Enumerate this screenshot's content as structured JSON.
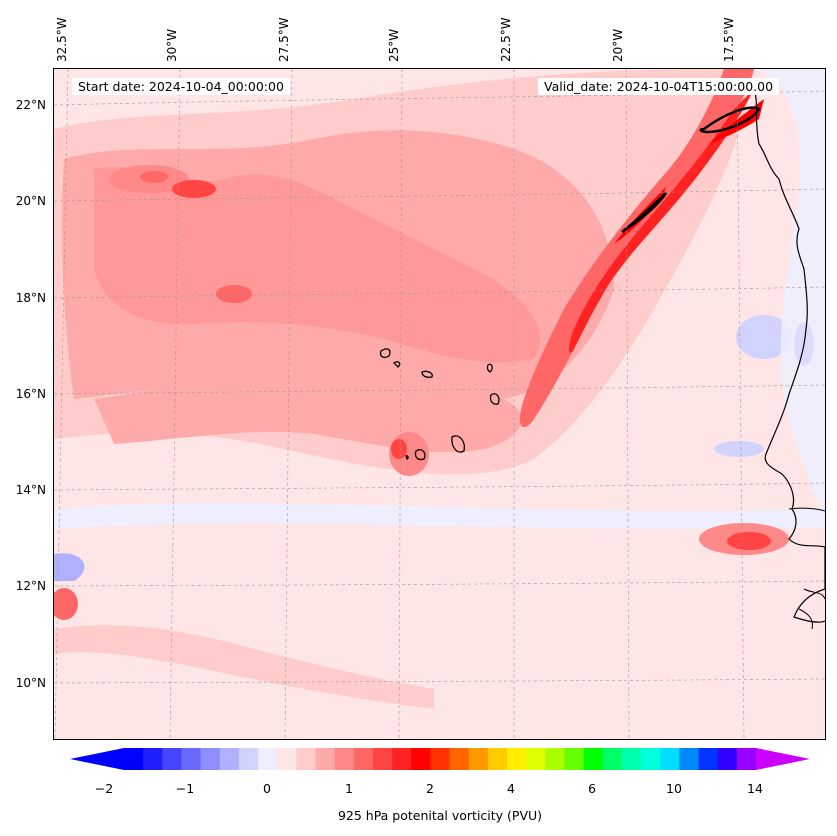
{
  "header": {
    "start_date": "Start date: 2024-10-04_00:00:00",
    "valid_date": "Valid_date: 2024-10-04T15:00:00.00"
  },
  "longitude_labels": [
    "32.5°W",
    "30°W",
    "27.5°W",
    "25°W",
    "22.5°W",
    "20°W",
    "17.5°W"
  ],
  "latitude_labels": [
    "22°N",
    "20°N",
    "18°N",
    "16°N",
    "14°N",
    "12°N",
    "10°N"
  ],
  "colorbar": {
    "title": "925 hPa potenital vorticity (PVU)",
    "tick_labels": [
      "−2",
      "−1",
      "0",
      "1",
      "2",
      "4",
      "6",
      "10",
      "14"
    ],
    "colors": [
      "#0000ff",
      "#2020ff",
      "#4646ff",
      "#6a6aff",
      "#8e8eff",
      "#b0b0ff",
      "#d2d2ff",
      "#eeeeff",
      "#ffe6e6",
      "#ffcccc",
      "#ffaaaa",
      "#ff8888",
      "#ff6666",
      "#ff4444",
      "#ff2222",
      "#ff0000",
      "#ff3300",
      "#ff6600",
      "#ff9900",
      "#ffcc00",
      "#ffee00",
      "#ddff00",
      "#aaff00",
      "#66ff00",
      "#00ff00",
      "#00ff66",
      "#00ffaa",
      "#00ffdd",
      "#00ddff",
      "#0088ff",
      "#0033ff",
      "#3300ff",
      "#9900ff"
    ],
    "under_color": "#0000ff",
    "over_color": "#cc00ff"
  }
}
